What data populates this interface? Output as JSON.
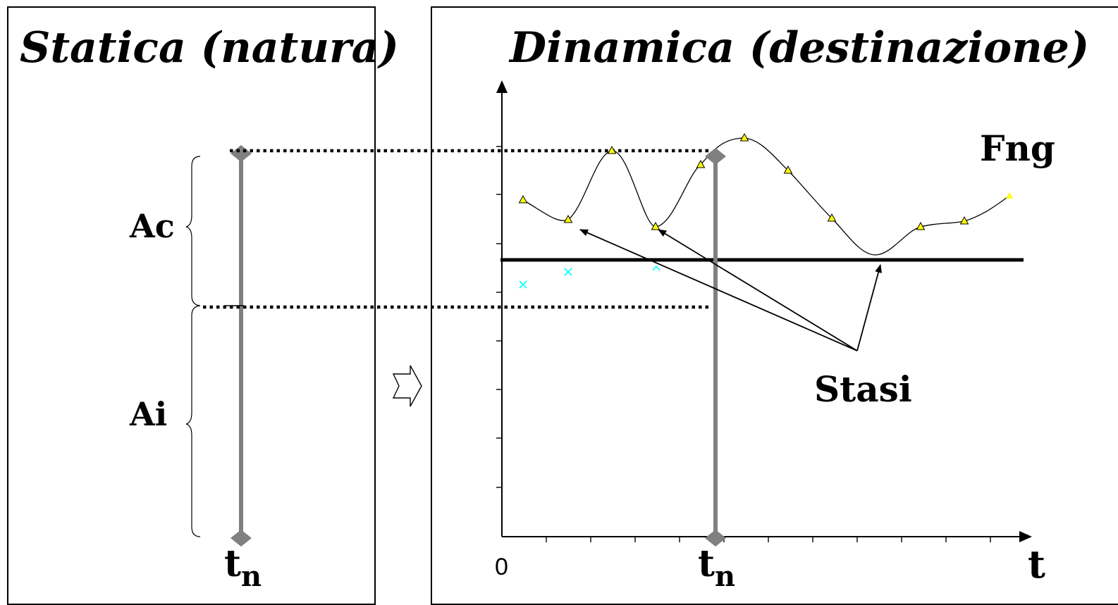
{
  "left_panel": {
    "title": "Statica (natura)"
  },
  "right_panel": {
    "title": "Dinamica (destinazione)"
  },
  "labels": {
    "ac": "Ac",
    "ai": "Ai",
    "tn_base": "t",
    "tn_sub": "n",
    "zero": "0",
    "t_axis": "t",
    "fng": "Fng",
    "stasi": "Stasi"
  },
  "colors": {
    "curve": "#000000",
    "markers": "#ffff00",
    "cross_markers": "#00ffff",
    "tn_bar": "#808080",
    "threshold": "#000000"
  }
}
